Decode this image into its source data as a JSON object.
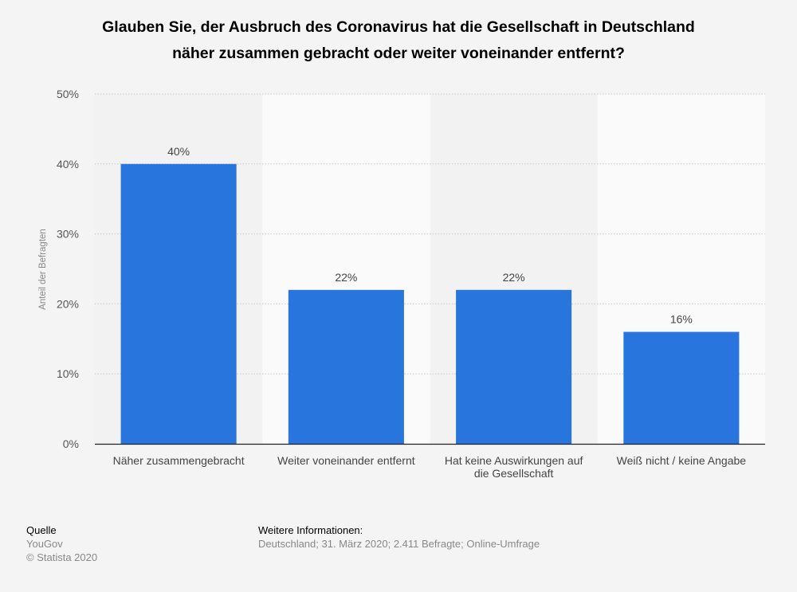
{
  "title_lines": [
    "Glauben Sie, der Ausbruch des Coronavirus hat die Gesellschaft in Deutschland",
    "näher zusammen gebracht oder weiter voneinander entfernt?"
  ],
  "chart_data": {
    "type": "bar",
    "categories": [
      [
        "Näher zusammengebracht"
      ],
      [
        "Weiter voneinander entfernt"
      ],
      [
        "Hat keine Auswirkungen auf",
        "die Gesellschaft"
      ],
      [
        "Weiß nicht / keine Angabe"
      ]
    ],
    "values": [
      40,
      22,
      22,
      16
    ],
    "value_labels": [
      "40%",
      "22%",
      "22%",
      "16%"
    ],
    "ylabel": "Anteil der Befragten",
    "ylim": [
      0,
      50
    ],
    "yticks": [
      {
        "value": 0,
        "label": "0%"
      },
      {
        "value": 10,
        "label": "10%"
      },
      {
        "value": 20,
        "label": "20%"
      },
      {
        "value": 30,
        "label": "30%"
      },
      {
        "value": 40,
        "label": "40%"
      },
      {
        "value": 50,
        "label": "50%"
      }
    ],
    "grid": true,
    "bar_color": "#2876dd",
    "band_colors": [
      "#f2f2f2",
      "#fafafa"
    ]
  },
  "footer": {
    "source_heading": "Quelle",
    "source_lines": [
      "YouGov",
      "© Statista 2020"
    ],
    "info_heading": "Weitere Informationen:",
    "info_text": "Deutschland; 31. März 2020; 2.411 Befragte; Online-Umfrage"
  }
}
